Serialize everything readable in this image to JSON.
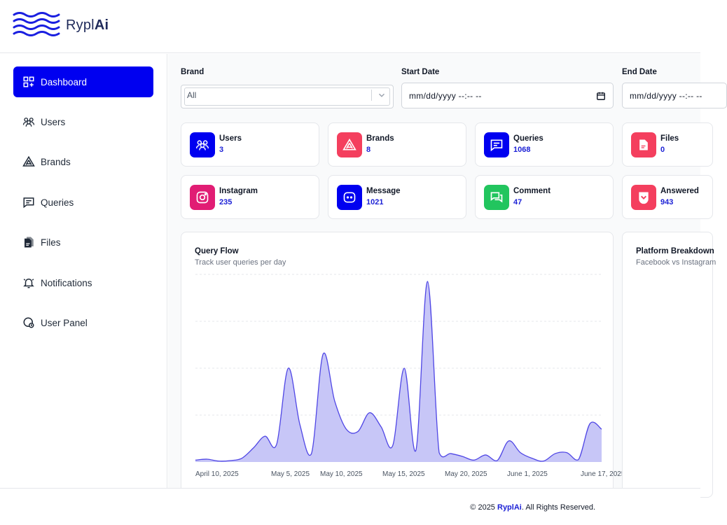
{
  "app": {
    "logo_text_light": "Rypl",
    "logo_text_bold": "Ai"
  },
  "sidebar": {
    "items": [
      {
        "label": "Dashboard",
        "icon": "dashboard-icon",
        "active": true
      },
      {
        "label": "Users",
        "icon": "users-icon"
      },
      {
        "label": "Brands",
        "icon": "brands-icon"
      },
      {
        "label": "Queries",
        "icon": "queries-icon"
      },
      {
        "label": "Files",
        "icon": "files-icon"
      },
      {
        "label": "Notifications",
        "icon": "bell-icon"
      },
      {
        "label": "User Panel",
        "icon": "user-panel-icon"
      }
    ]
  },
  "filters": {
    "brand_label": "Brand",
    "brand_value": "All",
    "start_label": "Start Date",
    "start_value": "mm/dd/yyyy --:-- --",
    "end_label": "End Date",
    "end_value": "mm/dd/yyyy --:-- --"
  },
  "stats": [
    {
      "label": "Users",
      "value": "3",
      "icon": "users-icon",
      "color": "#0000f0"
    },
    {
      "label": "Brands",
      "value": "8",
      "icon": "brands-icon",
      "color": "#f43f5e"
    },
    {
      "label": "Queries",
      "value": "1068",
      "icon": "queries-icon",
      "color": "#0000f0"
    },
    {
      "label": "Files",
      "value": "0",
      "icon": "files-icon",
      "color": "#f43f5e"
    },
    {
      "label": "Instagram",
      "value": "235",
      "icon": "instagram-icon",
      "color": "#e11d74"
    },
    {
      "label": "Message",
      "value": "1021",
      "icon": "message-icon",
      "color": "#0000f0"
    },
    {
      "label": "Comment",
      "value": "47",
      "icon": "comment-icon",
      "color": "#22c55e"
    },
    {
      "label": "Answered",
      "value": "943",
      "icon": "answered-icon",
      "color": "#f43f5e"
    }
  ],
  "query_flow": {
    "title": "Query Flow",
    "subtitle": "Track user queries per day"
  },
  "platform_breakdown": {
    "title": "Platform Breakdown",
    "subtitle": "Facebook vs Instagram"
  },
  "chart_data": {
    "type": "area",
    "title": "Query Flow",
    "subtitle": "Track user queries per day",
    "xlabel": "",
    "ylabel": "",
    "grid": true,
    "color": "#4f46e5",
    "fill": "#c7c6f7",
    "ylim": [
      0,
      400
    ],
    "x_tick_labels": [
      "April 10, 2025",
      "May 5, 2025",
      "May 10, 2025",
      "May 15, 2025",
      "May 20, 2025",
      "June 1, 2025",
      "June 17, 2025"
    ],
    "values": [
      4,
      6,
      2,
      3,
      8,
      30,
      55,
      38,
      200,
      80,
      18,
      230,
      130,
      70,
      65,
      105,
      75,
      35,
      200,
      25,
      385,
      20,
      18,
      12,
      4,
      15,
      3,
      45,
      20,
      8,
      2,
      18,
      20,
      5,
      82,
      70
    ]
  },
  "footer": {
    "copyright_prefix": "© 2025 ",
    "brand": "RyplAi",
    "suffix": ". All Rights Reserved."
  }
}
